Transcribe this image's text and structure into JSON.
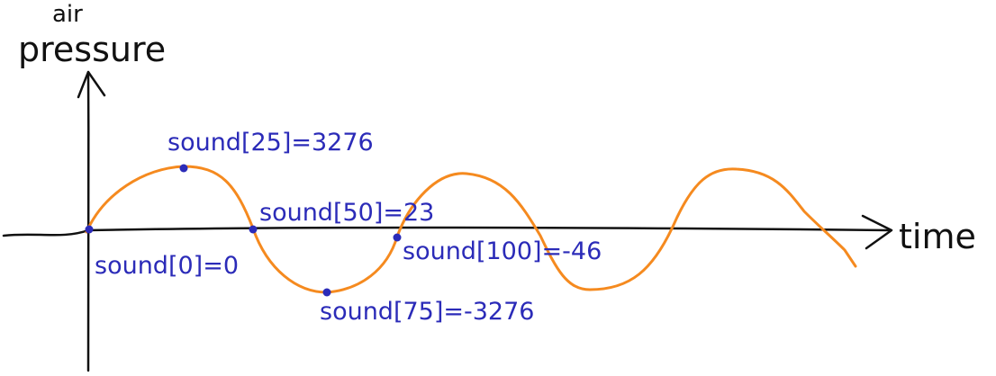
{
  "axes": {
    "y_label_line1": "air",
    "y_label_line2": "pressure",
    "x_label": "time"
  },
  "samples": [
    {
      "label": "sound[0]=0"
    },
    {
      "label": "sound[25]=3276"
    },
    {
      "label": "sound[50]=23"
    },
    {
      "label": "sound[75]=-3276"
    },
    {
      "label": "sound[100]=-46"
    }
  ],
  "colors": {
    "axis": "#111111",
    "wave": "#f58a1f",
    "sample": "#2b2bb8"
  }
}
